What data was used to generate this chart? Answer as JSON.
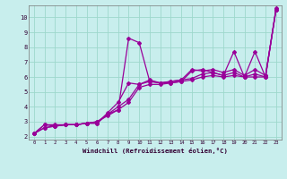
{
  "xlabel": "Windchill (Refroidissement éolien,°C)",
  "bg_color": "#c8eeed",
  "line_color": "#990099",
  "grid_color": "#9dd8cc",
  "xlim": [
    -0.5,
    23.5
  ],
  "ylim": [
    1.8,
    10.8
  ],
  "xticks": [
    0,
    1,
    2,
    3,
    4,
    5,
    6,
    7,
    8,
    9,
    10,
    11,
    12,
    13,
    14,
    15,
    16,
    17,
    18,
    19,
    20,
    21,
    22,
    23
  ],
  "yticks": [
    2,
    3,
    4,
    5,
    6,
    7,
    8,
    9,
    10
  ],
  "series": [
    {
      "x": [
        0,
        1,
        2,
        3,
        4,
        5,
        6,
        7,
        8,
        9,
        10,
        11,
        12,
        13,
        14,
        15,
        16,
        17,
        18,
        19,
        20,
        21,
        22,
        23
      ],
      "y": [
        2.2,
        2.8,
        2.8,
        2.8,
        2.8,
        2.9,
        2.9,
        3.5,
        3.8,
        8.6,
        8.3,
        5.7,
        5.6,
        5.6,
        5.7,
        6.4,
        6.5,
        6.3,
        6.1,
        7.7,
        6.0,
        7.7,
        6.0,
        10.6
      ]
    },
    {
      "x": [
        0,
        1,
        2,
        3,
        4,
        5,
        6,
        7,
        8,
        9,
        10,
        11,
        12,
        13,
        14,
        15,
        16,
        17,
        18,
        19,
        20,
        21,
        22,
        23
      ],
      "y": [
        2.2,
        2.8,
        2.7,
        2.8,
        2.8,
        2.9,
        2.9,
        3.6,
        4.3,
        5.6,
        5.5,
        5.8,
        5.6,
        5.7,
        5.8,
        6.5,
        6.4,
        6.5,
        6.3,
        6.5,
        6.1,
        6.5,
        6.1,
        10.5
      ]
    },
    {
      "x": [
        0,
        1,
        2,
        3,
        4,
        5,
        6,
        7,
        8,
        9,
        10,
        11,
        12,
        13,
        14,
        15,
        16,
        17,
        18,
        19,
        20,
        21,
        22,
        23
      ],
      "y": [
        2.2,
        2.6,
        2.7,
        2.8,
        2.8,
        2.9,
        3.0,
        3.5,
        4.0,
        4.5,
        5.5,
        5.7,
        5.6,
        5.7,
        5.8,
        5.9,
        6.2,
        6.3,
        6.1,
        6.3,
        6.0,
        6.2,
        6.0,
        10.5
      ]
    },
    {
      "x": [
        0,
        1,
        2,
        3,
        4,
        5,
        6,
        7,
        8,
        9,
        10,
        11,
        12,
        13,
        14,
        15,
        16,
        17,
        18,
        19,
        20,
        21,
        22,
        23
      ],
      "y": [
        2.2,
        2.6,
        2.7,
        2.8,
        2.8,
        2.9,
        3.0,
        3.4,
        3.8,
        4.3,
        5.3,
        5.5,
        5.5,
        5.6,
        5.7,
        5.8,
        6.0,
        6.1,
        6.0,
        6.1,
        6.0,
        6.0,
        6.0,
        10.5
      ]
    }
  ]
}
